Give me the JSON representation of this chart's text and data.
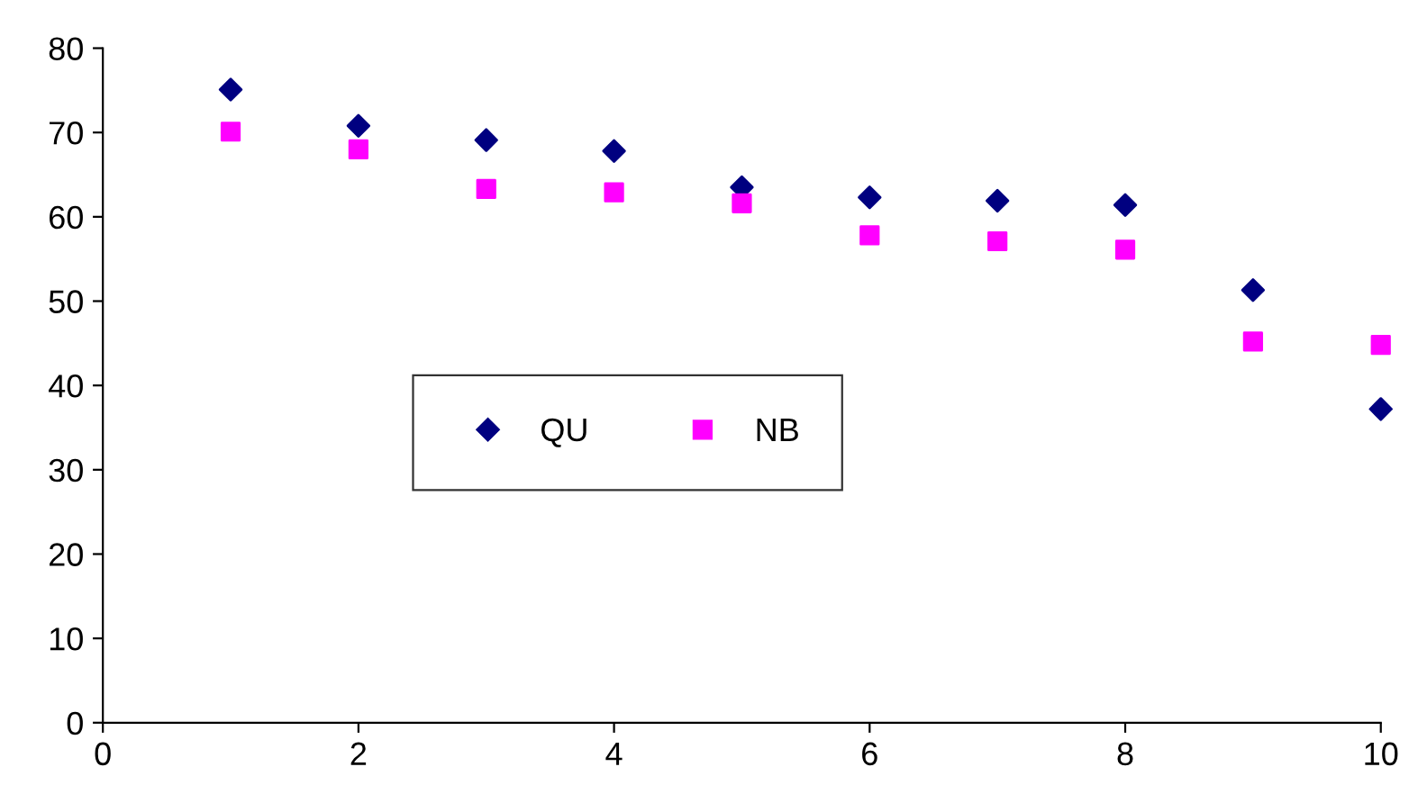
{
  "chart_data": {
    "type": "scatter",
    "x": [
      1,
      2,
      3,
      4,
      5,
      6,
      7,
      8,
      9,
      10
    ],
    "series": [
      {
        "name": "QU",
        "color": "#000080",
        "marker": "diamond",
        "values": [
          75.1,
          70.8,
          69.1,
          67.8,
          63.5,
          62.3,
          61.9,
          61.4,
          51.3,
          37.2
        ]
      },
      {
        "name": "NB",
        "color": "#ff00ff",
        "marker": "square",
        "values": [
          70.1,
          68.0,
          63.3,
          62.9,
          61.6,
          57.8,
          57.1,
          56.1,
          45.2,
          44.8
        ]
      }
    ],
    "xlim": [
      0,
      10
    ],
    "xticks": [
      0,
      2,
      4,
      6,
      8,
      10
    ],
    "ylim": [
      0,
      80
    ],
    "yticks": [
      0,
      10,
      20,
      30,
      40,
      50,
      60,
      70,
      80
    ],
    "grid": false,
    "legend": "center left"
  }
}
